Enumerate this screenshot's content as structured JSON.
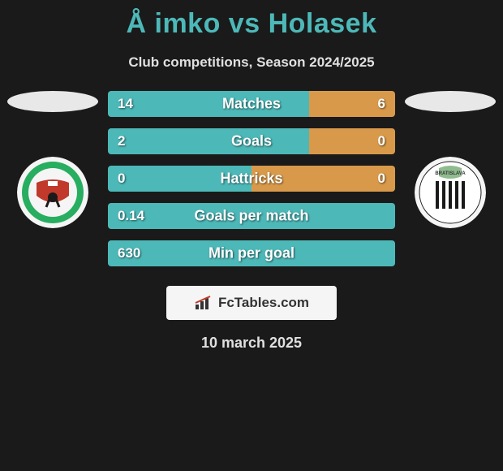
{
  "title": "Å imko vs Holasek",
  "subtitle": "Club competitions, Season 2024/2025",
  "date": "10 march 2025",
  "footer_logo_text": "FcTables.com",
  "left_color": "#4db8b8",
  "right_color": "#d89a4a",
  "background_color": "#1a1a1a",
  "text_color": "#e0e0e0",
  "rows": [
    {
      "label": "Matches",
      "left_val": "14",
      "right_val": "6",
      "left_pct": 70,
      "right_pct": 30
    },
    {
      "label": "Goals",
      "left_val": "2",
      "right_val": "0",
      "left_pct": 70,
      "right_pct": 30
    },
    {
      "label": "Hattricks",
      "left_val": "0",
      "right_val": "0",
      "left_pct": 50,
      "right_pct": 50
    },
    {
      "label": "Goals per match",
      "left_val": "0.14",
      "right_val": "",
      "left_pct": 100,
      "right_pct": 0
    },
    {
      "label": "Min per goal",
      "left_val": "630",
      "right_val": "",
      "left_pct": 100,
      "right_pct": 0
    }
  ],
  "club_left": {
    "name": "FC Tatran Prešov",
    "ribbon_color": "#c0392b",
    "accent_color": "#27ae60"
  },
  "club_right": {
    "name": "FC Petržalka Bratislava",
    "stripe_color": "#1a1a1a",
    "bg_color": "#ffffff"
  }
}
